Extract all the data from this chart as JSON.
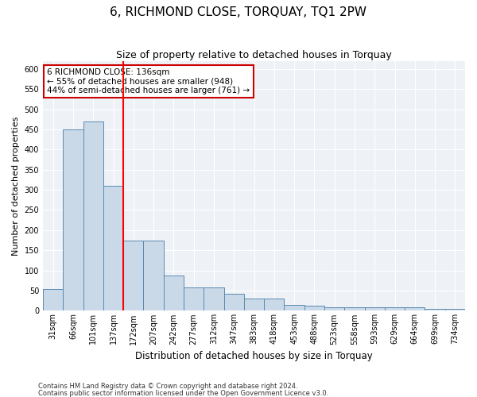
{
  "title": "6, RICHMOND CLOSE, TORQUAY, TQ1 2PW",
  "subtitle": "Size of property relative to detached houses in Torquay",
  "xlabel": "Distribution of detached houses by size in Torquay",
  "ylabel": "Number of detached properties",
  "categories": [
    "31sqm",
    "66sqm",
    "101sqm",
    "137sqm",
    "172sqm",
    "207sqm",
    "242sqm",
    "277sqm",
    "312sqm",
    "347sqm",
    "383sqm",
    "418sqm",
    "453sqm",
    "488sqm",
    "523sqm",
    "558sqm",
    "593sqm",
    "629sqm",
    "664sqm",
    "699sqm",
    "734sqm"
  ],
  "values": [
    53,
    450,
    470,
    310,
    175,
    175,
    88,
    57,
    57,
    43,
    30,
    30,
    15,
    13,
    8,
    8,
    8,
    8,
    8,
    4,
    4
  ],
  "bar_color": "#c9d9e8",
  "bar_edge_color": "#5a8ab0",
  "red_line_index": 3,
  "annotation_text": "6 RICHMOND CLOSE: 136sqm\n← 55% of detached houses are smaller (948)\n44% of semi-detached houses are larger (761) →",
  "annotation_box_facecolor": "#ffffff",
  "annotation_box_edgecolor": "#cc0000",
  "footnote1": "Contains HM Land Registry data © Crown copyright and database right 2024.",
  "footnote2": "Contains public sector information licensed under the Open Government Licence v3.0.",
  "ylim": [
    0,
    620
  ],
  "yticks": [
    0,
    50,
    100,
    150,
    200,
    250,
    300,
    350,
    400,
    450,
    500,
    550,
    600
  ],
  "background_color": "#eef2f7",
  "grid_color": "#ffffff",
  "title_fontsize": 11,
  "subtitle_fontsize": 9,
  "ylabel_fontsize": 8,
  "xlabel_fontsize": 8.5,
  "tick_fontsize": 7,
  "annot_fontsize": 7.5,
  "footnote_fontsize": 6
}
